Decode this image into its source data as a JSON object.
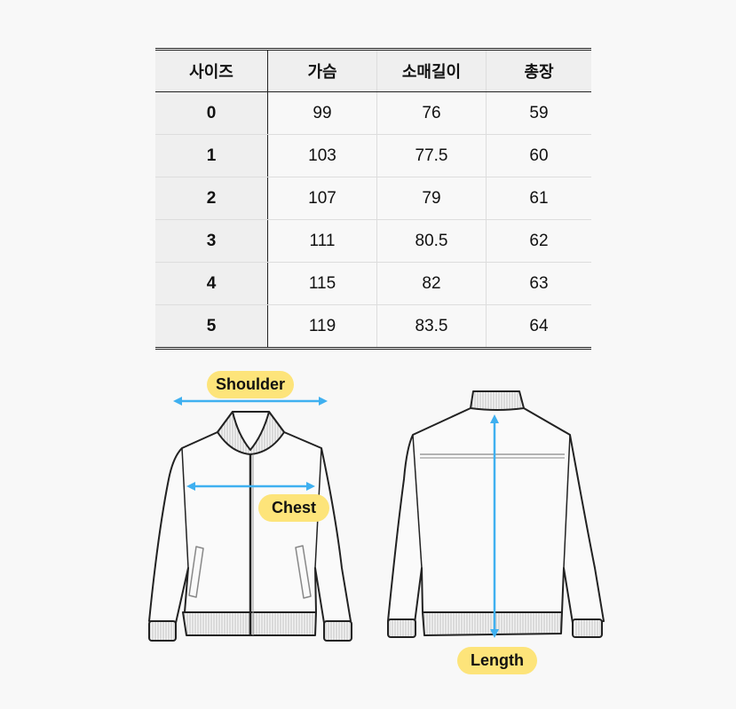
{
  "table": {
    "headers": [
      "사이즈",
      "가슴",
      "소매길이",
      "총장"
    ],
    "rows": [
      [
        "0",
        "99",
        "76",
        "59"
      ],
      [
        "1",
        "103",
        "77.5",
        "60"
      ],
      [
        "2",
        "107",
        "79",
        "61"
      ],
      [
        "3",
        "111",
        "80.5",
        "62"
      ],
      [
        "4",
        "115",
        "82",
        "63"
      ],
      [
        "5",
        "119",
        "83.5",
        "64"
      ]
    ]
  },
  "illustration": {
    "labels": {
      "shoulder": "Shoulder",
      "chest": "Chest",
      "length": "Length"
    },
    "colors": {
      "arrow": "#3fb0f0",
      "label_bg": "#fde47a"
    }
  }
}
